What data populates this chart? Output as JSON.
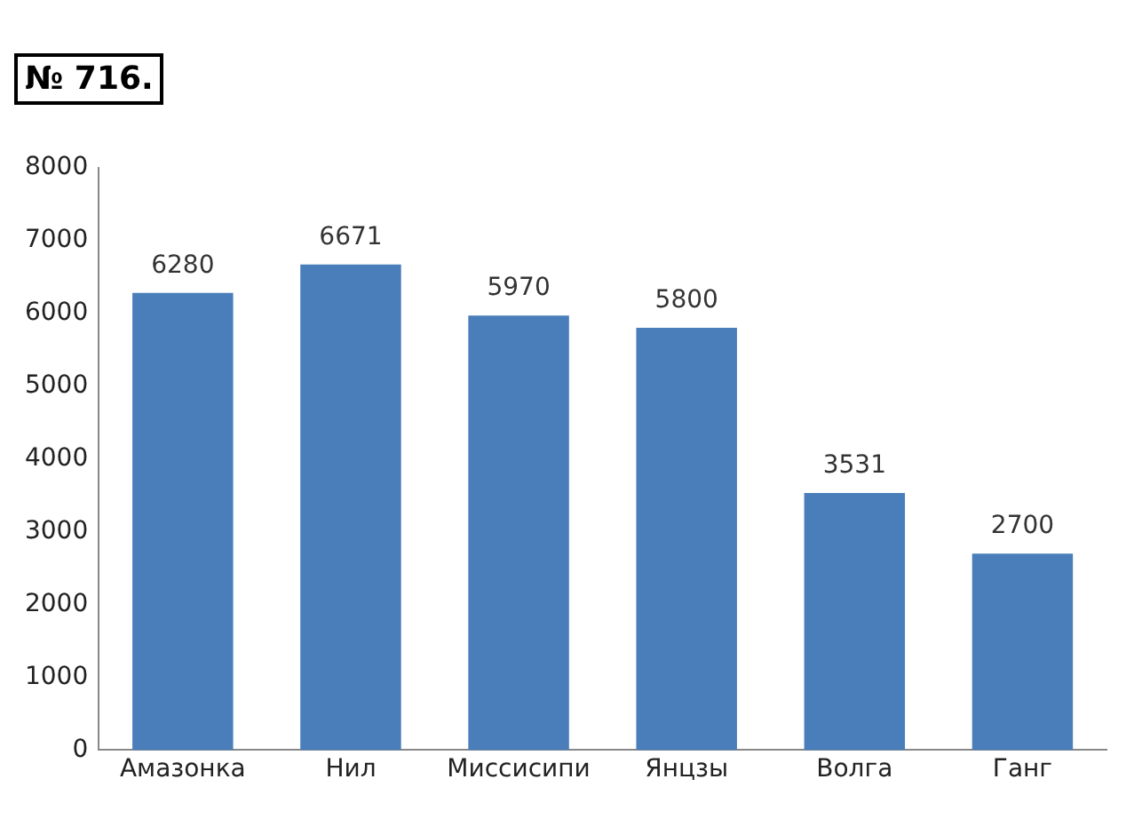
{
  "chart_data": {
    "type": "bar",
    "title": "№ 716.",
    "categories": [
      "Амазонка",
      "Нил",
      "Миссисипи",
      "Янцзы",
      "Волга",
      "Ганг"
    ],
    "values": [
      6280,
      6671,
      5970,
      5800,
      3531,
      2700
    ],
    "color": "#4a7ebb",
    "ylim": [
      0,
      8000
    ],
    "yticks": [
      0,
      1000,
      2000,
      3000,
      4000,
      5000,
      6000,
      7000,
      8000
    ],
    "grid": false,
    "data_labels": true
  }
}
